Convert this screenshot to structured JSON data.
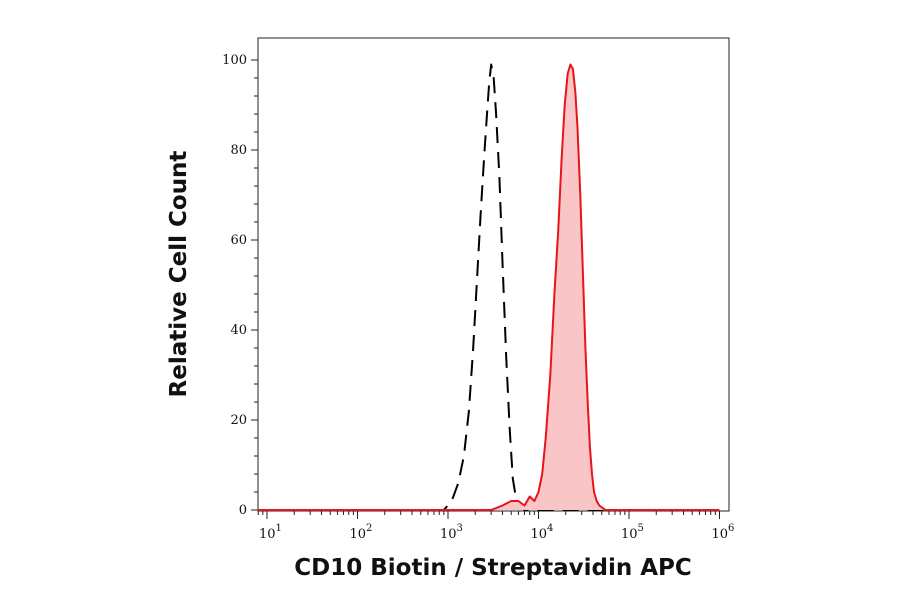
{
  "chart_data": {
    "type": "line",
    "xlabel": "CD10 Biotin / Streptavidin APC",
    "ylabel": "Relative Cell Count",
    "x_scale": "log",
    "xlim": [
      7,
      1000000
    ],
    "ylim": [
      0,
      103
    ],
    "x_ticks": [
      {
        "value": 10,
        "base": "10",
        "exp": "1"
      },
      {
        "value": 100,
        "base": "10",
        "exp": "2"
      },
      {
        "value": 1000,
        "base": "10",
        "exp": "3"
      },
      {
        "value": 10000,
        "base": "10",
        "exp": "4"
      },
      {
        "value": 100000,
        "base": "10",
        "exp": "5"
      },
      {
        "value": 1000000,
        "base": "10",
        "exp": "6"
      }
    ],
    "y_ticks": [
      "0",
      "20",
      "40",
      "60",
      "80",
      "100"
    ],
    "grid": false,
    "series": [
      {
        "style": "dashed",
        "color": "#000000",
        "filled": false,
        "x": [
          7,
          900,
          1100,
          1300,
          1500,
          1700,
          1900,
          2100,
          2300,
          2500,
          2700,
          2850,
          3000,
          3200,
          3400,
          3700,
          4000,
          4400,
          4800,
          5200,
          5600,
          6000,
          7000,
          1000000
        ],
        "y": [
          0,
          0,
          2,
          6,
          12,
          22,
          36,
          52,
          66,
          78,
          88,
          95,
          99,
          96,
          88,
          74,
          55,
          34,
          18,
          7,
          3,
          1,
          0,
          0
        ]
      },
      {
        "style": "solid",
        "color": "#e8141a",
        "fill": "#f9c5c7",
        "filled": true,
        "x": [
          7,
          3000,
          4000,
          5000,
          6000,
          7000,
          8000,
          9000,
          10000,
          11000,
          12000,
          13500,
          15000,
          16500,
          18000,
          19500,
          21000,
          22500,
          24000,
          25500,
          27000,
          29000,
          31000,
          33000,
          35000,
          37000,
          39000,
          41000,
          44000,
          47000,
          51000,
          55000,
          60000,
          1000000
        ],
        "y": [
          0,
          0,
          1,
          2,
          2,
          1,
          3,
          2,
          4,
          8,
          16,
          30,
          48,
          62,
          78,
          90,
          97,
          99,
          98,
          93,
          85,
          70,
          52,
          36,
          24,
          14,
          8,
          4,
          2,
          1,
          0.5,
          0,
          0,
          0
        ]
      }
    ]
  }
}
